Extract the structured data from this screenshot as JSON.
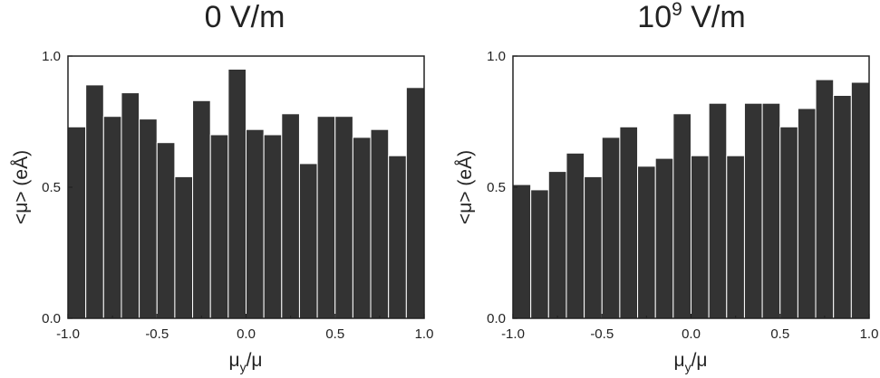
{
  "chart_data": [
    {
      "type": "bar",
      "title": "0 V/m",
      "xlabel": "μ_y/μ",
      "ylabel": "<μ> (eÅ)",
      "xlim": [
        -1.0,
        1.0
      ],
      "ylim": [
        0.0,
        1.0
      ],
      "xticks": [
        "-1.0",
        "-0.5",
        "0.0",
        "0.5",
        "1.0"
      ],
      "yticks": [
        "0.0",
        "0.5",
        "1.0"
      ],
      "bin_width": 0.1,
      "bin_centers": [
        -0.95,
        -0.85,
        -0.75,
        -0.65,
        -0.55,
        -0.45,
        -0.35,
        -0.25,
        -0.15,
        -0.05,
        0.05,
        0.15,
        0.25,
        0.35,
        0.45,
        0.55,
        0.65,
        0.75,
        0.85,
        0.95
      ],
      "values": [
        0.73,
        0.89,
        0.77,
        0.86,
        0.76,
        0.67,
        0.54,
        0.83,
        0.7,
        0.95,
        0.72,
        0.7,
        0.78,
        0.59,
        0.77,
        0.77,
        0.69,
        0.72,
        0.62,
        0.88
      ],
      "grid": false,
      "legend": "none"
    },
    {
      "type": "bar",
      "title": "10^9 V/m",
      "title_base": "10",
      "title_sup": "9",
      "title_rest": " V/m",
      "xlabel": "μ_y/μ",
      "ylabel": "<μ> (eÅ)",
      "xlim": [
        -1.0,
        1.0
      ],
      "ylim": [
        0.0,
        1.0
      ],
      "xticks": [
        "-1.0",
        "-0.5",
        "0.0",
        "0.5",
        "1.0"
      ],
      "yticks": [
        "0.0",
        "0.5",
        "1.0"
      ],
      "bin_width": 0.1,
      "bin_centers": [
        -0.95,
        -0.85,
        -0.75,
        -0.65,
        -0.55,
        -0.45,
        -0.35,
        -0.25,
        -0.15,
        -0.05,
        0.05,
        0.15,
        0.25,
        0.35,
        0.45,
        0.55,
        0.65,
        0.75,
        0.85,
        0.95
      ],
      "values": [
        0.51,
        0.49,
        0.56,
        0.63,
        0.54,
        0.69,
        0.73,
        0.58,
        0.61,
        0.78,
        0.62,
        0.82,
        0.62,
        0.82,
        0.82,
        0.73,
        0.8,
        0.91,
        0.85,
        0.9
      ],
      "grid": false,
      "legend": "none"
    }
  ],
  "colors": {
    "bar": "#333333",
    "axis": "#222222",
    "background": "#ffffff"
  }
}
